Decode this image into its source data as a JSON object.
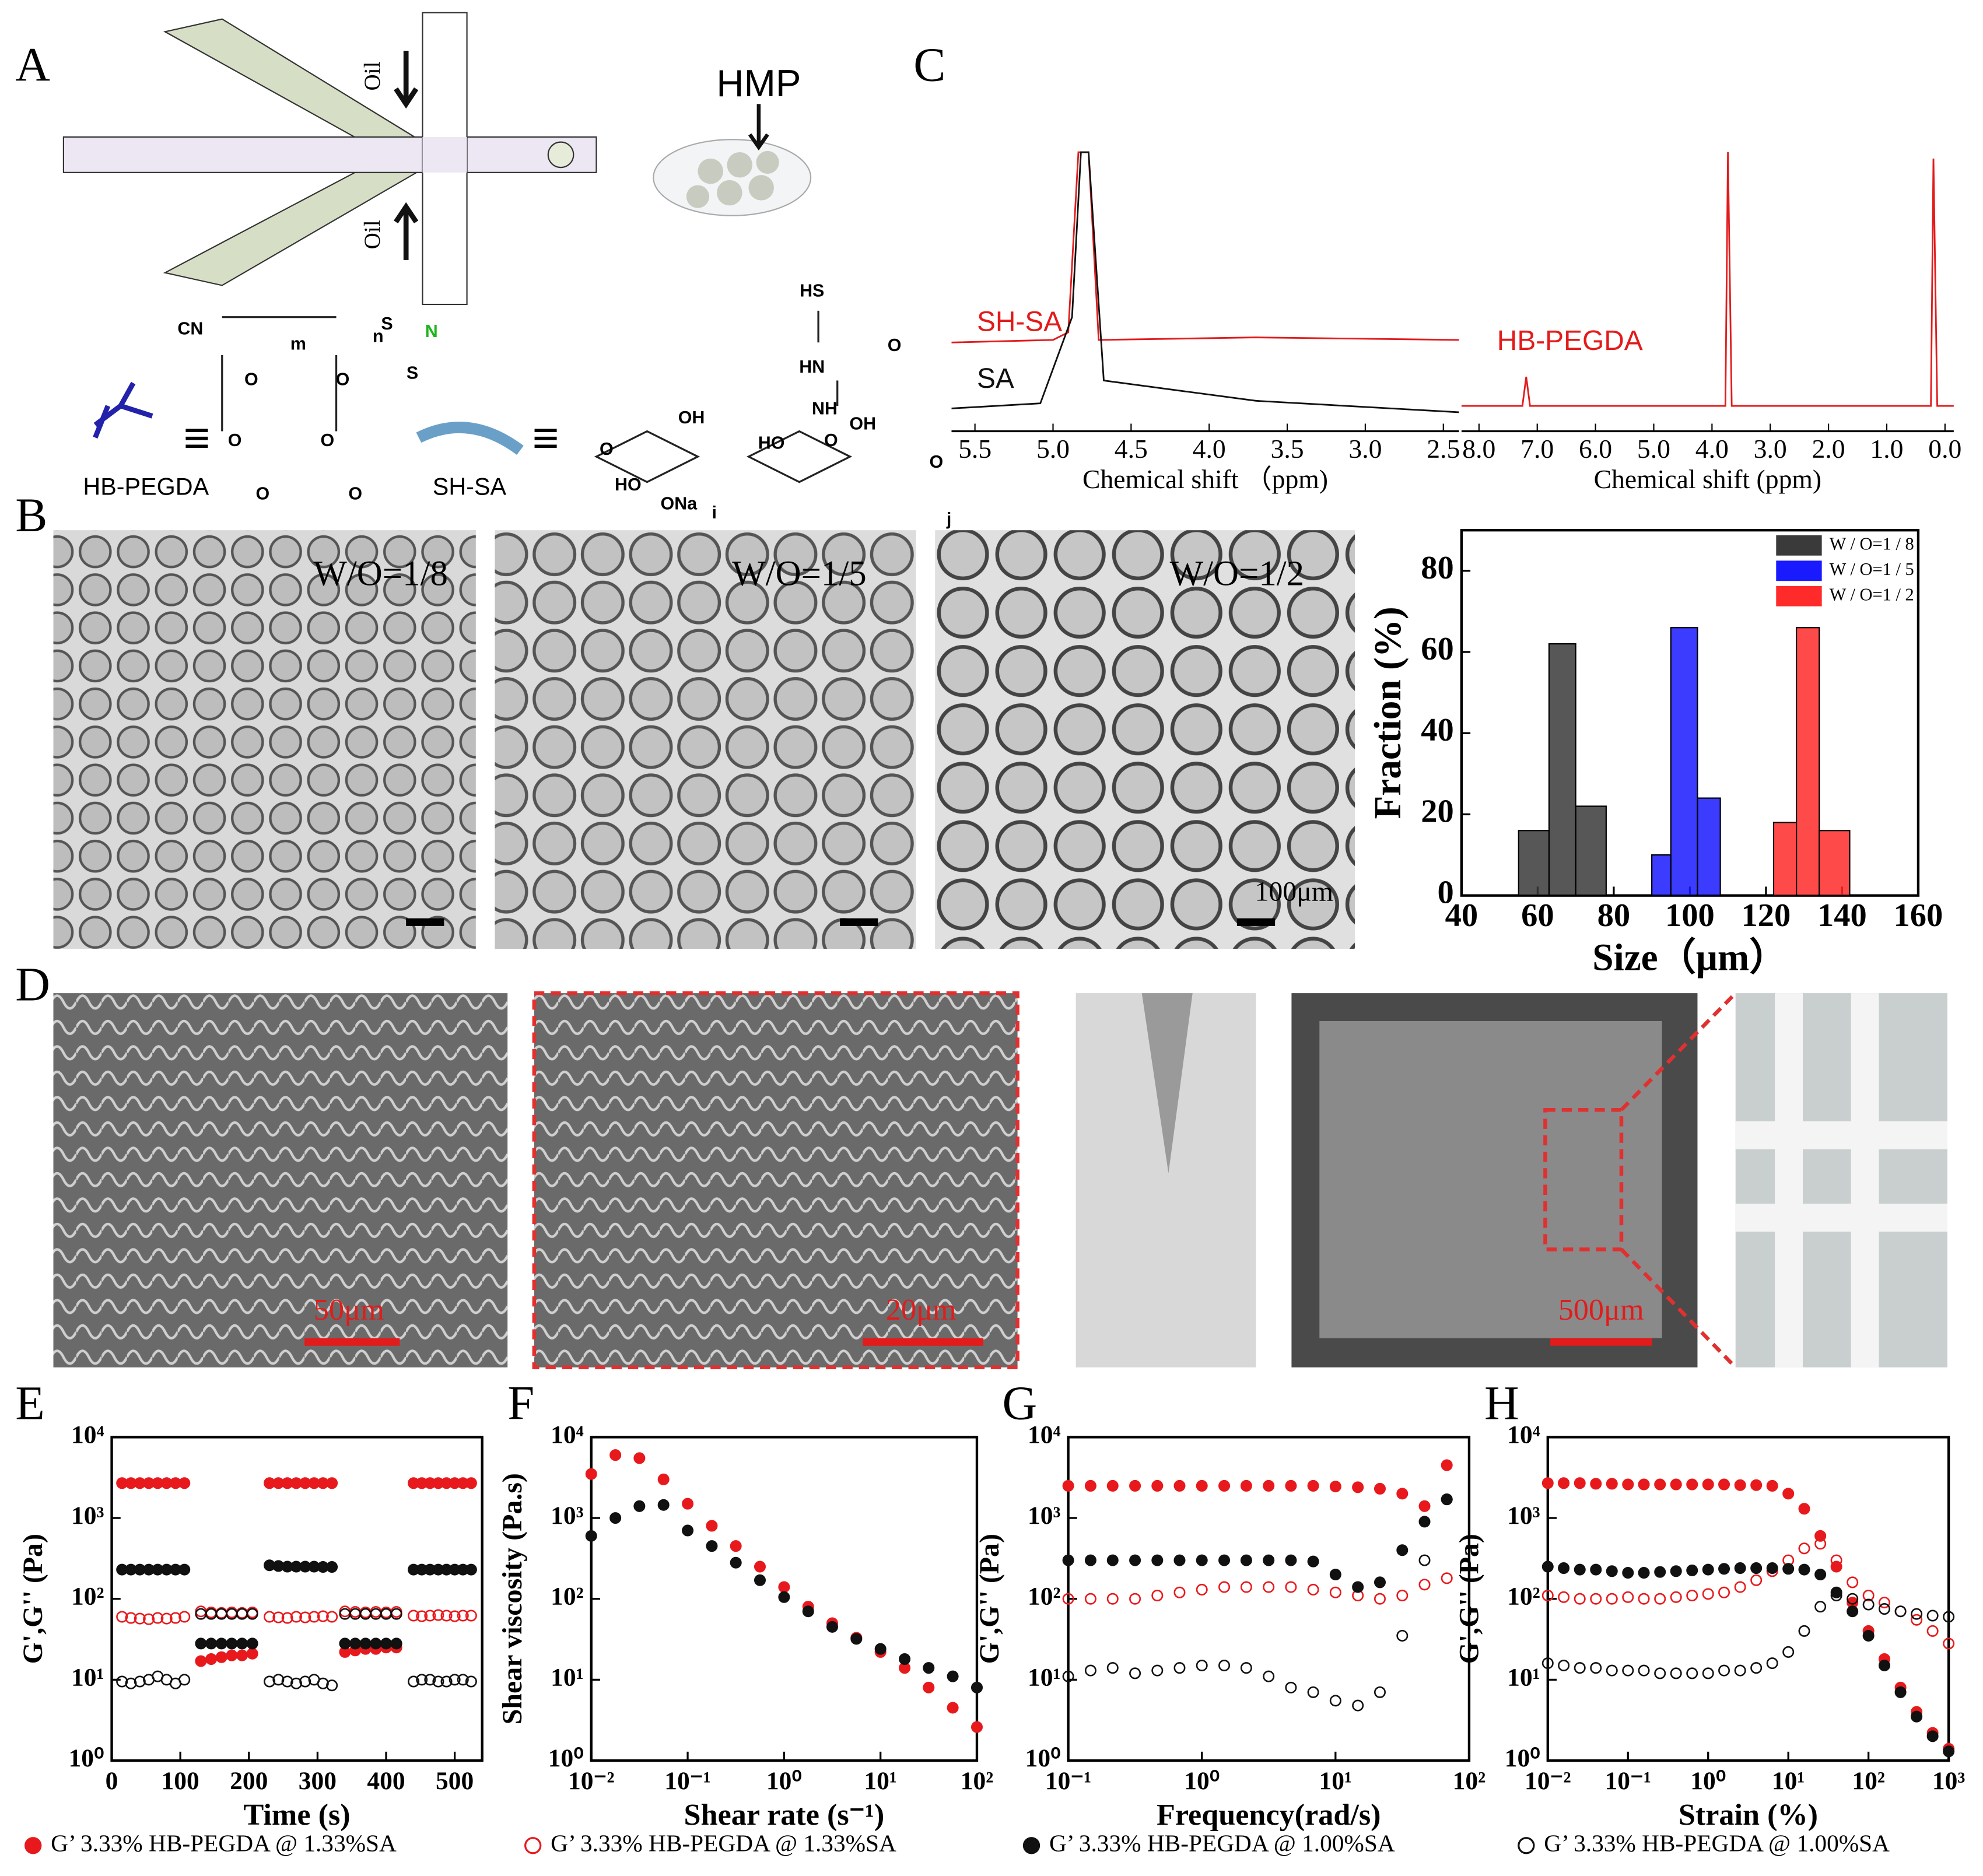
{
  "panel_labels": [
    "A",
    "B",
    "C",
    "D",
    "E",
    "F",
    "G",
    "H"
  ],
  "panel_a": {
    "oil_top": "Oil",
    "oil_bottom": "Oil",
    "hmp": "HMP",
    "hb_pegda": "HB-PEGDA",
    "sh_sa": "SH-SA",
    "structure_labels": [
      "CN",
      "m",
      "n",
      "S",
      "S",
      "N",
      "O",
      "O",
      "O",
      "O",
      "O",
      "O",
      "HS",
      "O",
      "HN",
      "NH",
      "O",
      "OH",
      "OH",
      "HO",
      "HO",
      "O",
      "O",
      "ONa",
      "i",
      "j",
      "≡",
      "≡"
    ]
  },
  "panel_b": {
    "image_labels": [
      "W/O=1/8",
      "W/O=1/5",
      "W/O=1/2"
    ],
    "scale_bar": "100μm"
  },
  "panel_d": {
    "scale_bars": [
      "50μm",
      "20μm",
      "500μm"
    ]
  },
  "legend": [
    {
      "name": "G’  3.33% HB-PEGDA @ 1.33%SA",
      "color": "#e8191c",
      "marker": "filled"
    },
    {
      "name": "G’  3.33% HB-PEGDA @ 1.33%SA",
      "color": "#e8191c",
      "marker": "open"
    },
    {
      "name": "G’  3.33% HB-PEGDA @ 1.00%SA",
      "color": "#111111",
      "marker": "filled"
    },
    {
      "name": "G’  3.33% HB-PEGDA @ 1.00%SA",
      "color": "#111111",
      "marker": "open"
    }
  ],
  "chart_data": [
    {
      "type": "histogram",
      "xlabel": "Size（μm）",
      "ylabel": "Fraction (%)",
      "xlim": [
        40,
        160
      ],
      "xticks": [
        40,
        60,
        80,
        100,
        120,
        140,
        160
      ],
      "ylim": [
        0,
        90
      ],
      "yticks": [
        0,
        20,
        40,
        60,
        80
      ],
      "legend_position": "top-right",
      "series": [
        {
          "name": "W / O=1 / 8",
          "color": "#3a3a3a",
          "bins": [
            55,
            63,
            70,
            78
          ],
          "values": [
            16,
            62,
            22
          ]
        },
        {
          "name": "W / O=1 / 5",
          "color": "#1a1aff",
          "bins": [
            90,
            95,
            102,
            108
          ],
          "values": [
            10,
            66,
            24
          ]
        },
        {
          "name": "W / O=1 / 2",
          "color": "#ff2a2a",
          "bins": [
            122,
            128,
            134,
            142
          ],
          "values": [
            18,
            66,
            16
          ]
        }
      ]
    },
    {
      "type": "scatter",
      "xlabel": "Time (s)",
      "ylabel": "G',G'' (Pa)",
      "xlim": [
        0,
        540
      ],
      "xticks": [
        0,
        100,
        200,
        300,
        400,
        500
      ],
      "ylim": [
        1,
        10000
      ],
      "log_y": true,
      "yticks": [
        {
          "value": 1,
          "label": "10⁰"
        },
        {
          "value": 10,
          "label": "10¹"
        },
        {
          "value": 100,
          "label": "10²"
        },
        {
          "value": 1000,
          "label": "10³"
        },
        {
          "value": 10000,
          "label": "10⁴"
        }
      ],
      "x": [
        15,
        28,
        41,
        54,
        67,
        80,
        93,
        106,
        130,
        145,
        160,
        175,
        190,
        205,
        230,
        243,
        256,
        269,
        282,
        295,
        308,
        321,
        340,
        355,
        370,
        385,
        400,
        415,
        440,
        452,
        464,
        476,
        488,
        500,
        512,
        524
      ],
      "series": [
        {
          "color": "#e8191c",
          "marker": "filled",
          "values": [
            2700,
            2700,
            2700,
            2700,
            2700,
            2700,
            2700,
            2700,
            17,
            18,
            19,
            20,
            20,
            21,
            2700,
            2700,
            2700,
            2700,
            2700,
            2700,
            2700,
            2700,
            22,
            23,
            24,
            24,
            25,
            25,
            2700,
            2700,
            2700,
            2700,
            2700,
            2700,
            2700,
            2700
          ]
        },
        {
          "color": "#e8191c",
          "marker": "open",
          "values": [
            60,
            58,
            57,
            56,
            58,
            57,
            58,
            60,
            70,
            68,
            67,
            68,
            67,
            68,
            60,
            59,
            58,
            60,
            59,
            60,
            61,
            60,
            70,
            69,
            68,
            69,
            68,
            69,
            62,
            61,
            62,
            63,
            62,
            61,
            62,
            62
          ]
        },
        {
          "color": "#111111",
          "marker": "filled",
          "values": [
            230,
            230,
            230,
            230,
            230,
            230,
            230,
            230,
            28,
            28,
            28,
            28,
            28,
            28,
            260,
            255,
            250,
            250,
            250,
            250,
            248,
            248,
            28,
            28,
            28,
            28,
            28,
            28,
            230,
            230,
            230,
            230,
            230,
            230,
            230,
            230
          ]
        },
        {
          "color": "#111111",
          "marker": "open",
          "values": [
            9.5,
            9,
            9.5,
            10,
            11,
            10,
            9,
            10,
            65,
            65,
            65,
            65,
            65,
            65,
            9.5,
            10,
            9.5,
            9,
            9.5,
            10,
            9,
            8.5,
            65,
            65,
            65,
            65,
            65,
            65,
            9.5,
            10,
            10,
            9.5,
            9.5,
            10,
            10,
            9.5
          ]
        }
      ]
    },
    {
      "type": "scatter",
      "xlabel": "Shear rate (s⁻¹)",
      "ylabel": "Shear viscosity (Pa.s)",
      "xlim": [
        0.01,
        100
      ],
      "log_x": true,
      "log_y": true,
      "ylim": [
        1,
        10000
      ],
      "xticks": [
        {
          "value": 0.01,
          "label": "10⁻²"
        },
        {
          "value": 0.1,
          "label": "10⁻¹"
        },
        {
          "value": 1,
          "label": "10⁰"
        },
        {
          "value": 10,
          "label": "10¹"
        },
        {
          "value": 100,
          "label": "10²"
        }
      ],
      "yticks": [
        {
          "value": 1,
          "label": "10⁰"
        },
        {
          "value": 10,
          "label": "10¹"
        },
        {
          "value": 100,
          "label": "10²"
        },
        {
          "value": 1000,
          "label": "10³"
        },
        {
          "value": 10000,
          "label": "10⁴"
        }
      ],
      "x": [
        0.01,
        0.0178,
        0.0316,
        0.0562,
        0.1,
        0.178,
        0.316,
        0.562,
        1,
        1.78,
        3.16,
        5.62,
        10,
        17.8,
        31.6,
        56.2,
        100
      ],
      "series": [
        {
          "color": "#e8191c",
          "marker": "filled",
          "values": [
            3500,
            6000,
            5500,
            3000,
            1500,
            800,
            450,
            250,
            140,
            80,
            50,
            33,
            22,
            14,
            8,
            4.5,
            2.6
          ]
        },
        {
          "color": "#111111",
          "marker": "filled",
          "values": [
            600,
            1000,
            1400,
            1450,
            700,
            450,
            280,
            170,
            105,
            70,
            45,
            32,
            24,
            18,
            14,
            11,
            8
          ]
        }
      ]
    },
    {
      "type": "scatter",
      "xlabel": "Frequency(rad/s)",
      "ylabel": "G',G'' (Pa)",
      "xlim": [
        0.1,
        100
      ],
      "log_x": true,
      "log_y": true,
      "ylim": [
        1,
        10000
      ],
      "xticks": [
        {
          "value": 0.1,
          "label": "10⁻¹"
        },
        {
          "value": 1,
          "label": "10⁰"
        },
        {
          "value": 10,
          "label": "10¹"
        },
        {
          "value": 100,
          "label": "10²"
        }
      ],
      "yticks": [
        {
          "value": 1,
          "label": "10⁰"
        },
        {
          "value": 10,
          "label": "10¹"
        },
        {
          "value": 100,
          "label": "10²"
        },
        {
          "value": 1000,
          "label": "10³"
        },
        {
          "value": 10000,
          "label": "10⁴"
        }
      ],
      "x": [
        0.1,
        0.147,
        0.215,
        0.316,
        0.464,
        0.681,
        1,
        1.47,
        2.15,
        3.16,
        4.64,
        6.81,
        10,
        14.7,
        21.5,
        31.6,
        46.4,
        68.1
      ],
      "series": [
        {
          "color": "#e8191c",
          "marker": "filled",
          "values": [
            2500,
            2500,
            2500,
            2500,
            2500,
            2500,
            2500,
            2500,
            2500,
            2500,
            2500,
            2500,
            2450,
            2400,
            2300,
            2000,
            1400,
            4500
          ]
        },
        {
          "color": "#e8191c",
          "marker": "open",
          "values": [
            100,
            100,
            100,
            100,
            110,
            120,
            130,
            140,
            140,
            140,
            140,
            130,
            120,
            110,
            100,
            110,
            150,
            180
          ]
        },
        {
          "color": "#111111",
          "marker": "filled",
          "values": [
            300,
            300,
            300,
            300,
            300,
            300,
            300,
            300,
            300,
            300,
            300,
            290,
            200,
            140,
            160,
            400,
            900,
            1700
          ]
        },
        {
          "color": "#111111",
          "marker": "open",
          "values": [
            11,
            13,
            14,
            12,
            13,
            14,
            15,
            15,
            14,
            11,
            8,
            7,
            5.5,
            4.8,
            7,
            35,
            300,
            1700
          ]
        }
      ]
    },
    {
      "type": "scatter",
      "xlabel": "Strain (%)",
      "ylabel": "G',G'' (Pa)",
      "xlim": [
        0.01,
        1000
      ],
      "log_x": true,
      "log_y": true,
      "ylim": [
        1,
        10000
      ],
      "xticks": [
        {
          "value": 0.01,
          "label": "10⁻²"
        },
        {
          "value": 0.1,
          "label": "10⁻¹"
        },
        {
          "value": 1,
          "label": "10⁰"
        },
        {
          "value": 10,
          "label": "10¹"
        },
        {
          "value": 100,
          "label": "10²"
        },
        {
          "value": 1000,
          "label": "10³"
        }
      ],
      "yticks": [
        {
          "value": 1,
          "label": "10⁰"
        },
        {
          "value": 10,
          "label": "10¹"
        },
        {
          "value": 100,
          "label": "10²"
        },
        {
          "value": 1000,
          "label": "10³"
        },
        {
          "value": 10000,
          "label": "10⁴"
        }
      ],
      "x": [
        0.01,
        0.0158,
        0.0251,
        0.0398,
        0.0631,
        0.1,
        0.158,
        0.251,
        0.398,
        0.631,
        1,
        1.58,
        2.51,
        3.98,
        6.31,
        10,
        15.8,
        25.1,
        39.8,
        63.1,
        100,
        158,
        251,
        398,
        631,
        1000
      ],
      "series": [
        {
          "color": "#e8191c",
          "marker": "filled",
          "values": [
            2700,
            2700,
            2700,
            2650,
            2650,
            2600,
            2600,
            2600,
            2600,
            2600,
            2600,
            2600,
            2550,
            2550,
            2500,
            2000,
            1300,
            600,
            250,
            90,
            40,
            18,
            8,
            4,
            2.2,
            1.4
          ]
        },
        {
          "color": "#e8191c",
          "marker": "open",
          "values": [
            110,
            105,
            100,
            100,
            100,
            105,
            100,
            100,
            105,
            110,
            115,
            120,
            140,
            170,
            220,
            300,
            420,
            480,
            300,
            160,
            110,
            90,
            70,
            55,
            40,
            28
          ]
        },
        {
          "color": "#111111",
          "marker": "filled",
          "values": [
            250,
            240,
            230,
            230,
            220,
            210,
            210,
            215,
            220,
            225,
            230,
            235,
            240,
            240,
            240,
            235,
            230,
            200,
            120,
            70,
            35,
            15,
            7,
            3.5,
            2,
            1.3
          ]
        },
        {
          "color": "#111111",
          "marker": "open",
          "values": [
            16,
            15,
            14,
            14,
            13,
            13,
            13,
            12,
            12,
            12,
            12,
            13,
            13,
            14,
            16,
            22,
            40,
            80,
            110,
            100,
            85,
            75,
            70,
            65,
            62,
            60
          ]
        }
      ]
    },
    {
      "type": "spectrum",
      "xlabel": "Chemical shift （ppm)",
      "labels": [
        "SH-SA",
        "SA"
      ],
      "xlim": [
        5.65,
        2.4
      ],
      "xticks": [
        5.5,
        {
          "value": 5,
          "label": "5.0"
        },
        4.5,
        {
          "value": 4,
          "label": "4.0"
        },
        3.5,
        {
          "value": 3,
          "label": "3.0"
        },
        2.5
      ]
    },
    {
      "type": "spectrum",
      "xlabel": "Chemical shift (ppm)",
      "labels": [
        "HB-PEGDA"
      ],
      "xlim": [
        8.3,
        -0.15
      ],
      "xticks": [
        {
          "value": 8,
          "label": "8.0"
        },
        {
          "value": 7,
          "label": "7.0"
        },
        {
          "value": 6,
          "label": "6.0"
        },
        {
          "value": 5,
          "label": "5.0"
        },
        {
          "value": 4,
          "label": "4.0"
        },
        {
          "value": 3,
          "label": "3.0"
        },
        {
          "value": 2,
          "label": "2.0"
        },
        {
          "value": 1,
          "label": "1.0"
        },
        {
          "value": 0,
          "label": "0.0"
        }
      ]
    }
  ]
}
